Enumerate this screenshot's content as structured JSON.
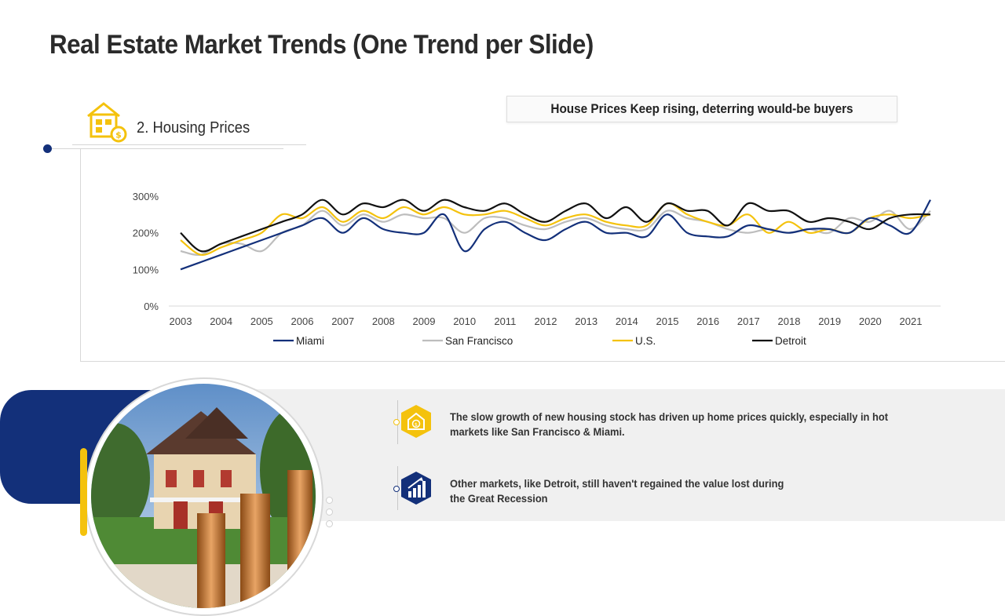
{
  "slide": {
    "title": "Real Estate Market Trends (One Trend per Slide)",
    "section_label": "2. Housing Prices",
    "headline": "House Prices Keep rising, deterring would-be buyers"
  },
  "colors": {
    "miami": "#13307a",
    "san_francisco": "#bdbdbd",
    "us": "#f4c20d",
    "detroit": "#111111",
    "accent_blue": "#13307a",
    "accent_yellow": "#f4c20d"
  },
  "chart_data": {
    "type": "line",
    "title": "",
    "xlabel": "",
    "ylabel": "",
    "ylim": [
      0,
      300
    ],
    "xlim": [
      2003,
      2022
    ],
    "yticks": [
      "0%",
      "100%",
      "200%",
      "300%"
    ],
    "xticks": [
      "2003",
      "2004",
      "2005",
      "2006",
      "2007",
      "2008",
      "2009",
      "2010",
      "2011",
      "2012",
      "2013",
      "2014",
      "2015",
      "2016",
      "2017",
      "2018",
      "2019",
      "2020",
      "2021"
    ],
    "grid": false,
    "legend_position": "bottom",
    "x": [
      2003,
      2003.5,
      2004,
      2004.5,
      2005,
      2005.5,
      2006,
      2006.5,
      2007,
      2007.5,
      2008,
      2008.5,
      2009,
      2009.5,
      2010,
      2010.5,
      2011,
      2011.5,
      2012,
      2012.5,
      2013,
      2013.5,
      2014,
      2014.5,
      2015,
      2015.5,
      2016,
      2016.5,
      2017,
      2017.5,
      2018,
      2018.5,
      2019,
      2019.5,
      2020,
      2020.5,
      2021,
      2021.5
    ],
    "series": [
      {
        "name": "Miami",
        "color_key": "miami",
        "values": [
          100,
          120,
          140,
          160,
          180,
          200,
          220,
          240,
          200,
          240,
          210,
          200,
          200,
          250,
          150,
          210,
          230,
          200,
          180,
          210,
          230,
          200,
          200,
          190,
          250,
          200,
          190,
          190,
          220,
          210,
          200,
          210,
          210,
          200,
          240,
          220,
          200,
          290
        ]
      },
      {
        "name": "San Francisco",
        "color_key": "san_francisco",
        "values": [
          150,
          140,
          170,
          170,
          150,
          200,
          220,
          260,
          220,
          250,
          230,
          250,
          240,
          240,
          200,
          240,
          240,
          220,
          210,
          230,
          240,
          220,
          210,
          210,
          260,
          240,
          230,
          210,
          200,
          210,
          200,
          210,
          200,
          240,
          230,
          260,
          210,
          260
        ]
      },
      {
        "name": "U.S.",
        "color_key": "us",
        "values": [
          180,
          140,
          160,
          180,
          200,
          250,
          240,
          270,
          230,
          260,
          240,
          270,
          250,
          270,
          250,
          250,
          260,
          240,
          220,
          240,
          250,
          230,
          220,
          220,
          280,
          250,
          230,
          220,
          250,
          200,
          230,
          200,
          210,
          200,
          240,
          250,
          240,
          250
        ]
      },
      {
        "name": "Detroit",
        "color_key": "detroit",
        "values": [
          200,
          150,
          170,
          190,
          210,
          230,
          250,
          290,
          250,
          280,
          270,
          290,
          260,
          290,
          270,
          260,
          280,
          250,
          230,
          260,
          280,
          240,
          270,
          230,
          280,
          260,
          260,
          220,
          280,
          260,
          260,
          230,
          240,
          230,
          210,
          240,
          250,
          250
        ]
      }
    ]
  },
  "info": [
    {
      "icon": "coin-house-icon",
      "text": "The slow growth of new housing stock has driven up home prices quickly, especially in hot markets like San Francisco & Miami."
    },
    {
      "icon": "bar-chart-growth-icon",
      "text": "Other markets, like Detroit, still haven't regained the value lost during the Great Recession"
    }
  ]
}
